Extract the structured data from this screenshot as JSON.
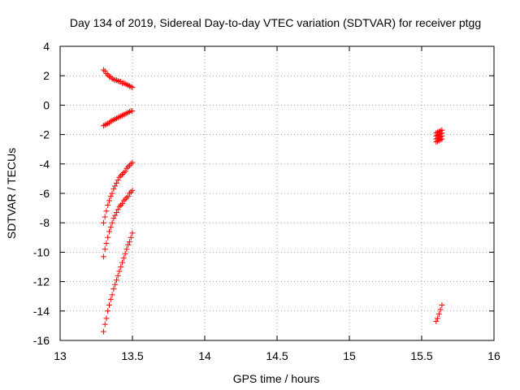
{
  "chart_data": {
    "type": "scatter",
    "title": "Day 134 of 2019, Sidereal Day-to-day VTEC variation (SDTVAR) for receiver ptgg",
    "xlabel": "GPS time / hours",
    "ylabel": "SDTVAR / TECUs",
    "xlim": [
      13,
      16
    ],
    "ylim": [
      -16,
      4
    ],
    "xticks": [
      "13",
      "13.5",
      "14",
      "14.5",
      "15",
      "15.5",
      "16"
    ],
    "yticks": [
      "4",
      "2",
      "0",
      "-2",
      "-4",
      "-6",
      "-8",
      "-10",
      "-12",
      "-14",
      "-16"
    ],
    "grid": true,
    "marker": "plus",
    "color": "#ff0000",
    "series": [
      {
        "x": [
          13.3,
          13.31,
          13.32,
          13.33,
          13.34,
          13.35,
          13.36,
          13.37,
          13.38,
          13.39,
          13.4,
          13.41,
          13.42,
          13.43,
          13.44,
          13.45,
          13.46,
          13.47,
          13.48,
          13.49,
          13.5
        ],
        "y": [
          2.4,
          2.3,
          2.15,
          2.05,
          1.95,
          1.9,
          1.8,
          1.75,
          1.7,
          1.7,
          1.65,
          1.6,
          1.6,
          1.5,
          1.5,
          1.45,
          1.4,
          1.35,
          1.3,
          1.25,
          1.2
        ]
      },
      {
        "x": [
          13.3,
          13.31,
          13.32,
          13.33,
          13.34,
          13.35,
          13.36,
          13.37,
          13.38,
          13.39,
          13.4,
          13.41,
          13.42,
          13.43,
          13.44,
          13.45,
          13.46,
          13.47,
          13.48,
          13.49,
          13.5
        ],
        "y": [
          -1.4,
          -1.35,
          -1.3,
          -1.25,
          -1.2,
          -1.1,
          -1.05,
          -1.0,
          -0.95,
          -0.9,
          -0.85,
          -0.8,
          -0.75,
          -0.7,
          -0.65,
          -0.6,
          -0.55,
          -0.5,
          -0.45,
          -0.4,
          -0.4
        ]
      },
      {
        "x": [
          13.3,
          13.31,
          13.32,
          13.33,
          13.34,
          13.35,
          13.36,
          13.37,
          13.38,
          13.39,
          13.4,
          13.41,
          13.42,
          13.43,
          13.44,
          13.45,
          13.46,
          13.47,
          13.48,
          13.49,
          13.5
        ],
        "y": [
          -8.0,
          -7.6,
          -7.2,
          -6.8,
          -6.5,
          -6.2,
          -6.0,
          -5.7,
          -5.5,
          -5.3,
          -5.1,
          -4.9,
          -4.8,
          -4.7,
          -4.6,
          -4.5,
          -4.3,
          -4.2,
          -4.1,
          -4.0,
          -3.9
        ]
      },
      {
        "x": [
          13.3,
          13.31,
          13.32,
          13.33,
          13.34,
          13.35,
          13.36,
          13.37,
          13.38,
          13.39,
          13.4,
          13.41,
          13.42,
          13.43,
          13.44,
          13.45,
          13.46,
          13.47,
          13.48,
          13.49,
          13.5
        ],
        "y": [
          -10.3,
          -9.8,
          -9.4,
          -9.0,
          -8.6,
          -8.3,
          -8.0,
          -7.7,
          -7.5,
          -7.3,
          -7.1,
          -6.9,
          -6.8,
          -6.7,
          -6.5,
          -6.4,
          -6.3,
          -6.2,
          -6.0,
          -5.9,
          -5.8
        ]
      },
      {
        "x": [
          13.3,
          13.31,
          13.32,
          13.33,
          13.34,
          13.35,
          13.36,
          13.37,
          13.38,
          13.39,
          13.4,
          13.41,
          13.42,
          13.43,
          13.44,
          13.45,
          13.46,
          13.47,
          13.48,
          13.49,
          13.5
        ],
        "y": [
          -15.4,
          -14.9,
          -14.5,
          -14.0,
          -13.6,
          -13.2,
          -12.9,
          -12.5,
          -12.2,
          -11.9,
          -11.6,
          -11.3,
          -11.0,
          -10.7,
          -10.4,
          -10.1,
          -9.8,
          -9.5,
          -9.3,
          -9.0,
          -8.7
        ]
      },
      {
        "x": [
          15.6,
          15.61,
          15.62,
          15.63,
          15.64,
          15.6,
          15.61,
          15.62,
          15.63,
          15.64,
          15.6,
          15.61,
          15.62,
          15.63,
          15.64,
          15.6,
          15.61,
          15.62,
          15.63,
          15.64
        ],
        "y": [
          -1.9,
          -1.85,
          -1.8,
          -1.75,
          -1.7,
          -2.1,
          -2.05,
          -2.0,
          -1.95,
          -1.9,
          -2.3,
          -2.25,
          -2.2,
          -2.15,
          -2.1,
          -2.5,
          -2.45,
          -2.4,
          -2.35,
          -2.3
        ]
      },
      {
        "x": [
          15.6,
          15.61,
          15.62,
          15.63,
          15.64
        ],
        "y": [
          -14.7,
          -14.5,
          -14.2,
          -13.9,
          -13.6
        ]
      }
    ]
  }
}
